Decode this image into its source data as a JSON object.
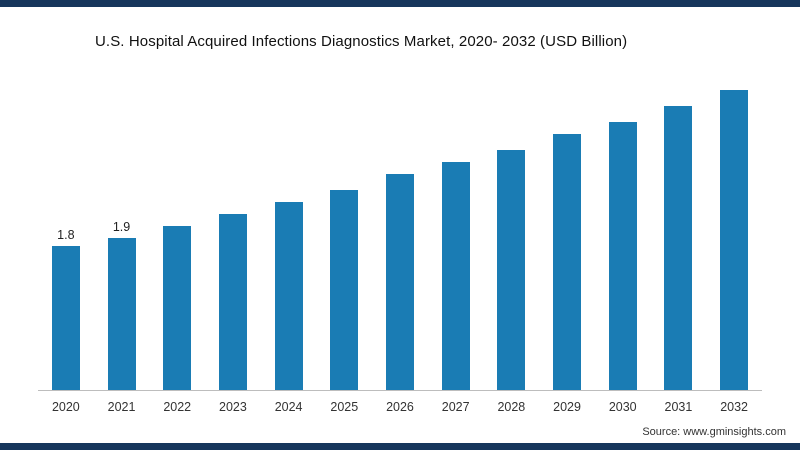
{
  "frame": {
    "border_color": "#16365C",
    "background": "#ffffff"
  },
  "chart_data": {
    "type": "bar",
    "title": "U.S. Hospital Acquired Infections Diagnostics Market, 2020- 2032 (USD Billion)",
    "categories": [
      "2020",
      "2021",
      "2022",
      "2023",
      "2024",
      "2025",
      "2026",
      "2027",
      "2028",
      "2029",
      "2030",
      "2031",
      "2032"
    ],
    "values": [
      1.8,
      1.9,
      2.05,
      2.2,
      2.35,
      2.5,
      2.7,
      2.85,
      3.0,
      3.2,
      3.35,
      3.55,
      3.75
    ],
    "data_labels": [
      "1.8",
      "1.9",
      "",
      "",
      "",
      "",
      "",
      "",
      "",
      "",
      "",
      "",
      ""
    ],
    "bar_color": "#1A7CB4",
    "xlabel": "",
    "ylabel": "",
    "ylim": [
      0,
      4
    ],
    "grid": false,
    "legend": false
  },
  "source": {
    "label": "Source: www.gminsights.com"
  }
}
